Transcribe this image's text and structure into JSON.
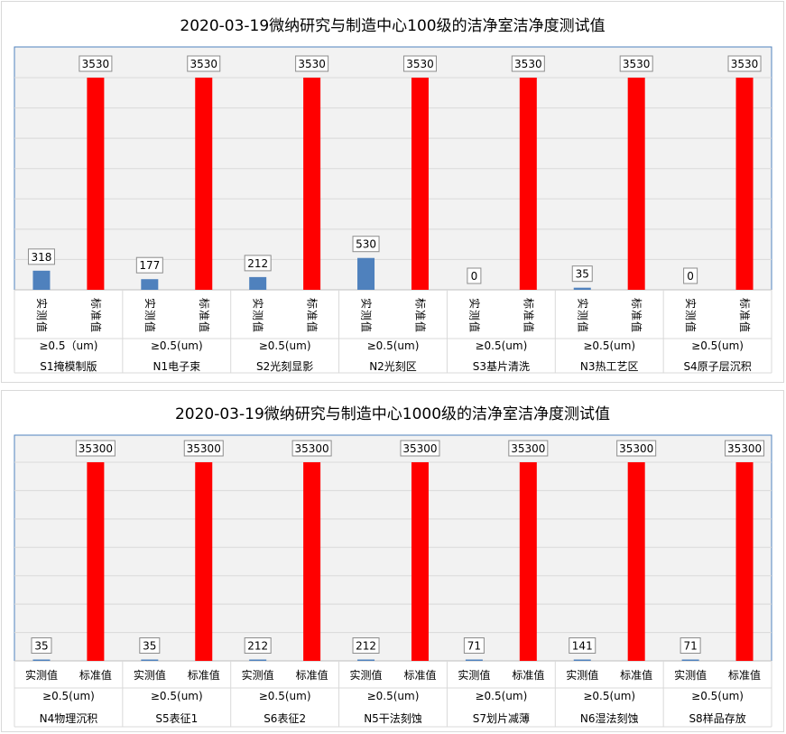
{
  "chart_data": [
    {
      "type": "bar",
      "title": "2020-03-19微纳研究与制造中心100级的洁净室洁净度测试值",
      "ylim": [
        0,
        3530
      ],
      "grid": true,
      "categories": [
        "S1掩模制版",
        "N1电子束",
        "S2光刻显影",
        "N2光刻区",
        "S3基片清洗",
        "N3热工艺区",
        "S4原子层沉积"
      ],
      "sub_labels": [
        "≥0.5（um)",
        "≥0.5(um)",
        "≥0.5(um)",
        "≥0.5(um)",
        "≥0.5(um)",
        "≥0.5(um)",
        "≥0.5(um)"
      ],
      "bar_labels": [
        "实测值",
        "标准值"
      ],
      "series": [
        {
          "name": "实测值",
          "color": "#4f81bd",
          "values": [
            318,
            177,
            212,
            530,
            0,
            35,
            0
          ]
        },
        {
          "name": "标准值",
          "color": "#ff0000",
          "values": [
            3530,
            3530,
            3530,
            3530,
            3530,
            3530,
            3530
          ]
        }
      ]
    },
    {
      "type": "bar",
      "title": "2020-03-19微纳研究与制造中心1000级的洁净室洁净度测试值",
      "ylim": [
        0,
        35300
      ],
      "grid": true,
      "categories": [
        "N4物理沉积",
        "S5表征1",
        "S6表征2",
        "N5干法刻蚀",
        "S7划片减薄",
        "N6湿法刻蚀",
        "S8样品存放"
      ],
      "sub_labels": [
        "≥0.5(um)",
        "≥0.5(um)",
        "≥0.5(um)",
        "≥0.5(um)",
        "≥0.5(um)",
        "≥0.5(um)",
        "≥0.5(um)"
      ],
      "bar_labels": [
        "实测值",
        "标准值"
      ],
      "series": [
        {
          "name": "实测值",
          "color": "#4f81bd",
          "values": [
            35,
            35,
            212,
            212,
            71,
            141,
            71
          ]
        },
        {
          "name": "标准值",
          "color": "#ff0000",
          "values": [
            35300,
            35300,
            35300,
            35300,
            35300,
            35300,
            35300
          ]
        }
      ]
    }
  ]
}
